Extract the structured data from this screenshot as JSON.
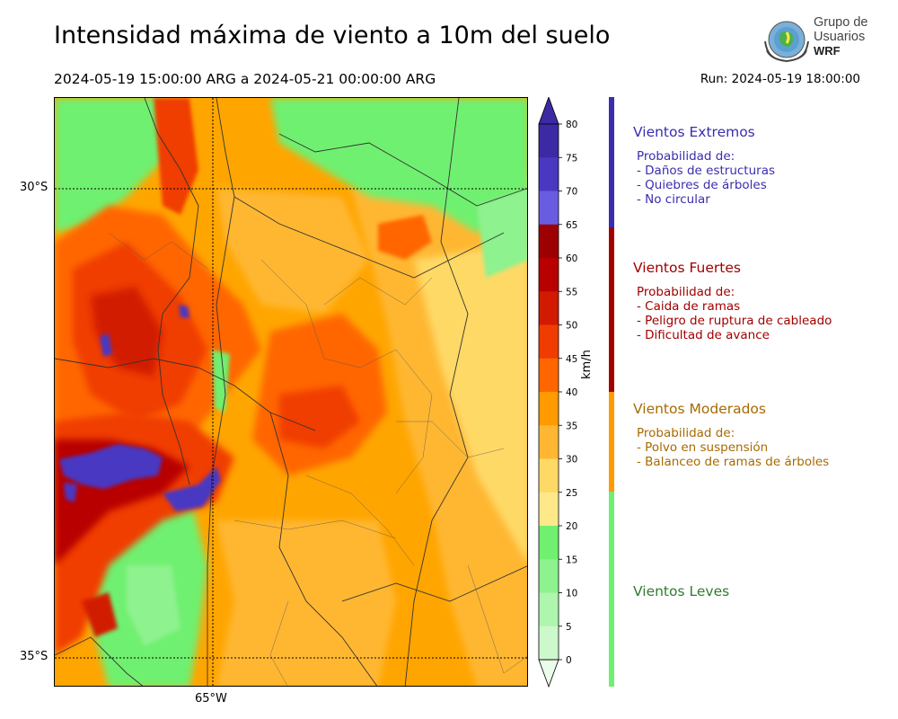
{
  "title": "Intensidad máxima de viento a 10m del suelo",
  "period": "2024-05-19 15:00:00 ARG  a  2024-05-21 00:00:00 ARG",
  "run": "Run: 2024-05-19 18:00:00",
  "logo": {
    "line1": "Grupo de",
    "line2": "Usuarios",
    "line3": "WRF"
  },
  "axes": {
    "lat_labels": [
      "30°S",
      "35°S"
    ],
    "lon_labels": [
      "65°W"
    ]
  },
  "colorbar": {
    "unit": "km/h",
    "ticks": [
      "80",
      "75",
      "70",
      "65",
      "60",
      "55",
      "50",
      "45",
      "40",
      "35",
      "30",
      "25",
      "20",
      "15",
      "10",
      "5",
      "0"
    ],
    "colors": [
      "#3c2aa4",
      "#4a38c2",
      "#6a5ce0",
      "#9c0000",
      "#b80000",
      "#d21a00",
      "#f03c00",
      "#ff6600",
      "#ff9a00",
      "#ffb733",
      "#ffd966",
      "#ffe88a",
      "#70f070",
      "#8ef28e",
      "#aef5ae",
      "#ccf8cc",
      "#eafcea"
    ]
  },
  "categories": [
    {
      "title": "Vientos Extremos",
      "color": "#3a2db0",
      "prob_label": "Probabilidad de:",
      "items": [
        "- Daños de estructuras",
        "- Quiebres de árboles",
        "- No circular"
      ]
    },
    {
      "title": "Vientos Fuertes",
      "color": "#a00000",
      "prob_label": "Probabilidad de:",
      "items": [
        "- Caida de ramas",
        "- Peligro de ruptura de cableado",
        "- Dificultad de avance"
      ]
    },
    {
      "title": "Vientos Moderados",
      "color": "#a86a00",
      "prob_label": "Probabilidad de:",
      "items": [
        "- Polvo en suspensión",
        "- Balanceo de ramas de árboles"
      ]
    },
    {
      "title": "Vientos Leves",
      "color": "#2e7d2e"
    }
  ],
  "legend_bar_colors": [
    "#3a2db0",
    "#a00000",
    "#ff9a00",
    "#70f070"
  ]
}
